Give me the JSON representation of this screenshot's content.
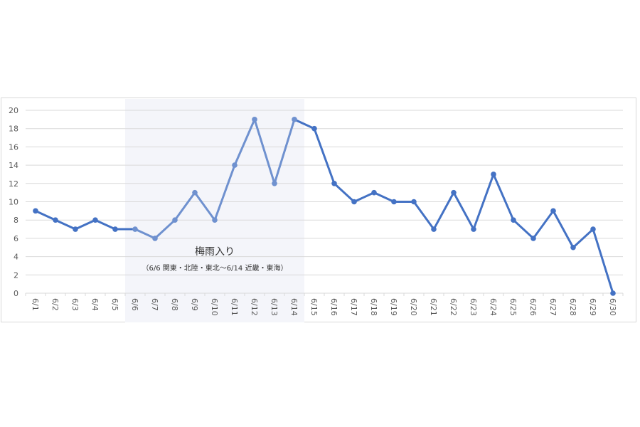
{
  "chart_data": {
    "type": "line",
    "categories": [
      "6/1",
      "6/2",
      "6/3",
      "6/4",
      "6/5",
      "6/6",
      "6/7",
      "6/8",
      "6/9",
      "6/10",
      "6/11",
      "6/12",
      "6/13",
      "6/14",
      "6/15",
      "6/16",
      "6/17",
      "6/18",
      "6/19",
      "6/20",
      "6/21",
      "6/22",
      "6/23",
      "6/24",
      "6/25",
      "6/26",
      "6/27",
      "6/28",
      "6/29",
      "6/30"
    ],
    "values": [
      9,
      8,
      7,
      8,
      7,
      7,
      6,
      8,
      11,
      8,
      14,
      19,
      12,
      19,
      18,
      12,
      10,
      11,
      10,
      10,
      7,
      11,
      7,
      13,
      8,
      6,
      9,
      5,
      7,
      0
    ],
    "ylim": [
      0,
      20
    ],
    "yticks": [
      0,
      2,
      4,
      6,
      8,
      10,
      12,
      14,
      16,
      18,
      20
    ],
    "grid": true,
    "highlight": {
      "from": "6/6",
      "to": "6/14",
      "label": "梅雨入り",
      "sublabel": "（6/6 関東・北陸・東北～6/14 近畿・東海）",
      "fill_color": "#f4f5fa"
    },
    "line_color": "#4472c4",
    "highlight_line_color": "#6f91cf",
    "grid_color": "#d9d9d9"
  }
}
